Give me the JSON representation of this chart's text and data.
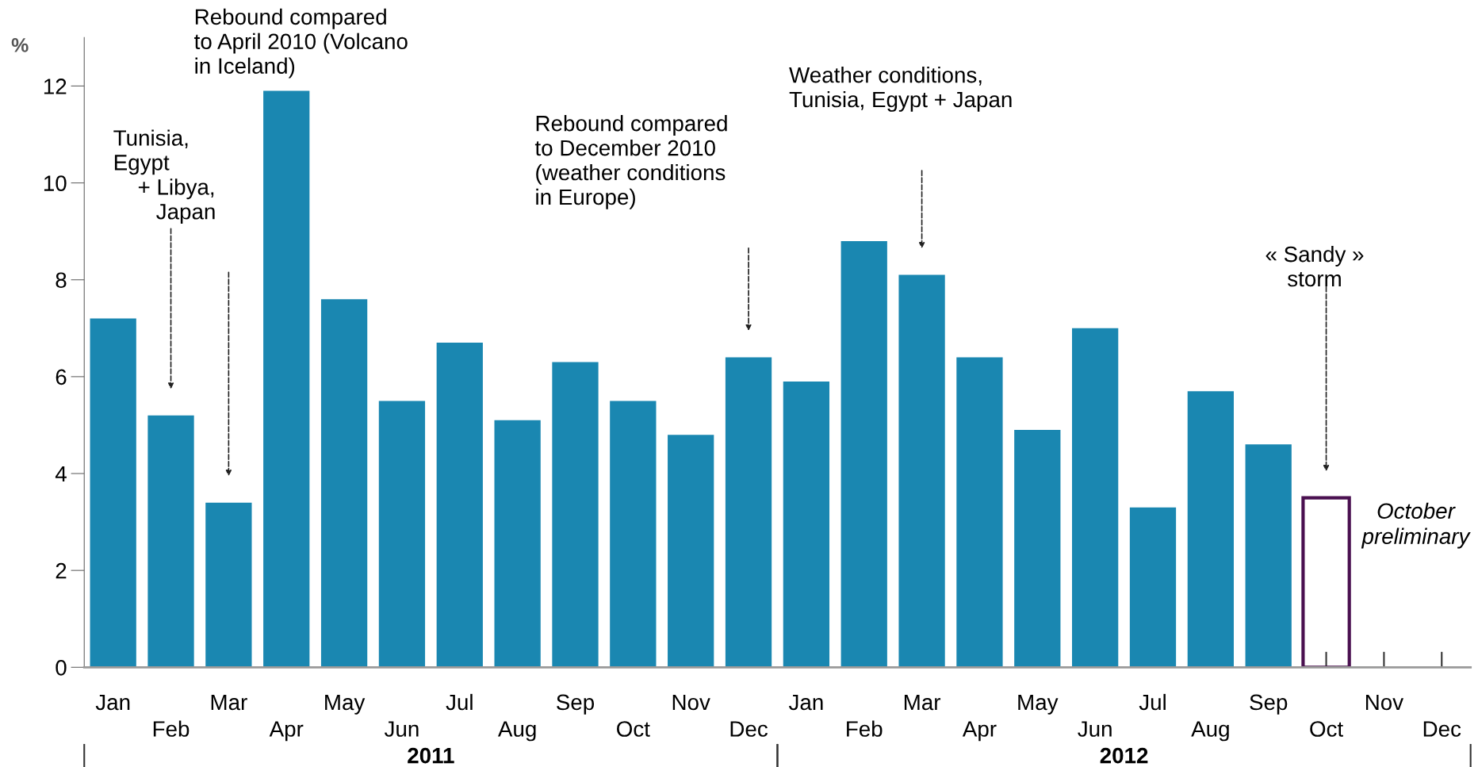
{
  "chart_data": {
    "type": "bar",
    "ylabel": "%",
    "categories": [
      "Jan",
      "Feb",
      "Mar",
      "Apr",
      "May",
      "Jun",
      "Jul",
      "Aug",
      "Sep",
      "Oct",
      "Nov",
      "Dec",
      "Jan",
      "Feb",
      "Mar",
      "Apr",
      "May",
      "Jun",
      "Jul",
      "Aug",
      "Sep",
      "Oct",
      "Nov",
      "Dec"
    ],
    "series": [
      {
        "color": "#1a87b1",
        "values": [
          7.2,
          5.2,
          3.4,
          11.9,
          7.6,
          5.5,
          6.7,
          5.1,
          6.3,
          5.5,
          4.8,
          6.4,
          5.9,
          8.8,
          8.1,
          6.4,
          4.9,
          7.0,
          3.3,
          5.7,
          4.6,
          null,
          null,
          null
        ]
      },
      {
        "name": "October\npreliminary",
        "color": "#4a1050",
        "values": [
          null,
          null,
          null,
          null,
          null,
          null,
          null,
          null,
          null,
          null,
          null,
          null,
          null,
          null,
          null,
          null,
          null,
          null,
          null,
          null,
          null,
          3.5,
          null,
          null
        ]
      }
    ],
    "ylim": [
      0,
      13
    ],
    "yticks": [
      0,
      2,
      4,
      6,
      8,
      10,
      12
    ],
    "grid": false,
    "legend": false,
    "annotations": [
      "Rebound compared\nto April 2010 (Volcano\nin Iceland)",
      "Tunisia,\nEgypt\n    + Libya,\n       Japan",
      "Rebound compared\nto December 2010\n(weather conditions\nin Europe)",
      "Weather conditions,\nTunisia, Egypt + Japan",
      "« Sandy »\nstorm",
      "2011",
      "2012"
    ]
  }
}
